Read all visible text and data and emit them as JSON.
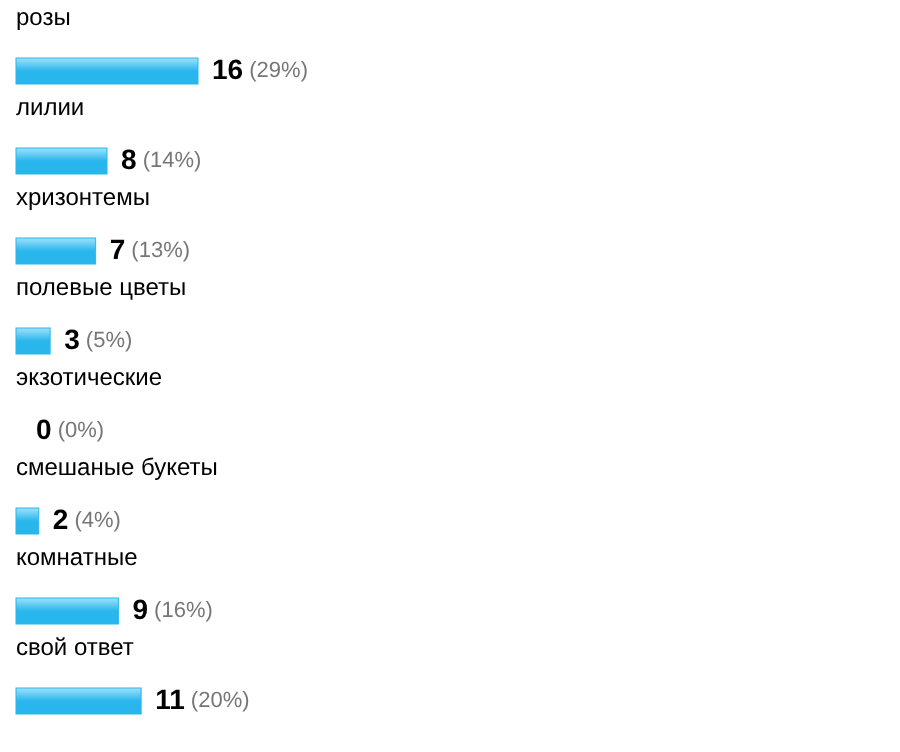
{
  "chart_data": {
    "type": "bar",
    "orientation": "horizontal",
    "categories": [
      "розы",
      "лилии",
      "хризонтемы",
      "полевые цветы",
      "экзотические",
      "смешаные букеты",
      "комнатные",
      "свой ответ"
    ],
    "values": [
      16,
      8,
      7,
      3,
      0,
      2,
      9,
      11
    ],
    "value_labels": [
      "16 (29%)",
      "8 (14%)",
      "7 (13%)",
      "3 (5%)",
      "0 (0%)",
      "2 (4%)",
      "9 (16%)",
      "11 (20%)"
    ],
    "color": "#29b6ec"
  }
}
